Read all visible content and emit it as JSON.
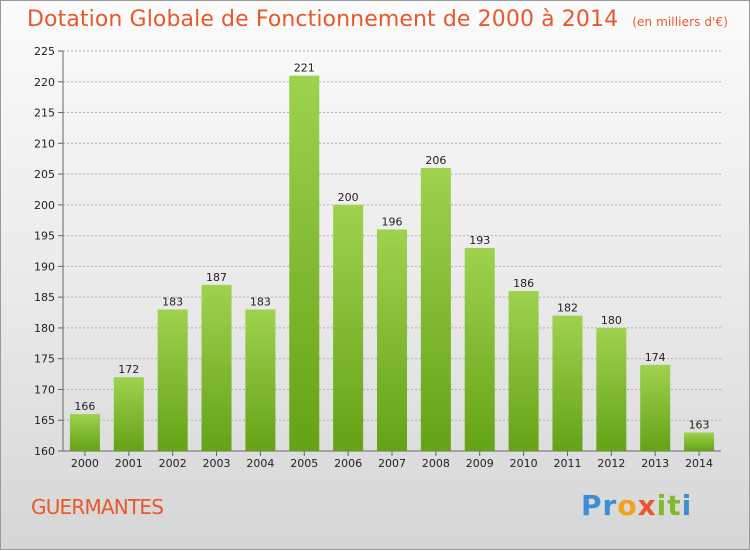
{
  "header": {
    "title": "Dotation Globale de Fonctionnement de 2000 à 2014",
    "subtitle": "(en milliers d'€)"
  },
  "footer": {
    "commune": "GUERMANTES",
    "logo_letters": [
      {
        "char": "P",
        "color": "#3a8fd6"
      },
      {
        "char": "r",
        "color": "#3a8fd6"
      },
      {
        "char": "o",
        "color": "#f2a21b"
      },
      {
        "char": "x",
        "color": "#e8582a"
      },
      {
        "char": "i",
        "color": "#7dbb2a"
      },
      {
        "char": "t",
        "color": "#7dbb2a"
      },
      {
        "char": "i",
        "color": "#3a8fd6"
      }
    ]
  },
  "colors": {
    "bar_top": "#9fd24f",
    "bar_bottom": "#64a315",
    "grid": "#b0b0b0",
    "accent": "#e8582a"
  },
  "chart_data": {
    "type": "bar",
    "title": "Dotation Globale de Fonctionnement de 2000 à 2014",
    "subtitle": "(en milliers d'€)",
    "categories": [
      "2000",
      "2001",
      "2002",
      "2003",
      "2004",
      "2005",
      "2006",
      "2007",
      "2008",
      "2009",
      "2010",
      "2011",
      "2012",
      "2013",
      "2014"
    ],
    "values": [
      166,
      172,
      183,
      187,
      183,
      221,
      200,
      196,
      206,
      193,
      186,
      182,
      180,
      174,
      163
    ],
    "ylim": [
      160,
      225
    ],
    "yticks": [
      160,
      165,
      170,
      175,
      180,
      185,
      190,
      195,
      200,
      205,
      210,
      215,
      220,
      225
    ],
    "grid": true,
    "xlabel": "",
    "ylabel": ""
  }
}
